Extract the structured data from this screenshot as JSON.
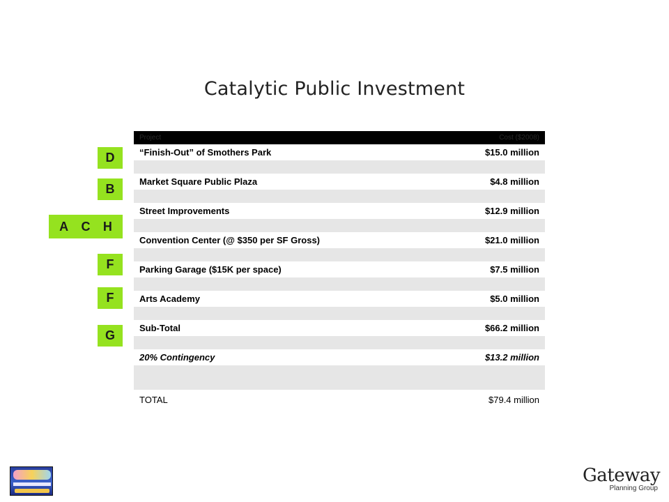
{
  "title": "Catalytic Public Investment",
  "table": {
    "header": {
      "project": "Project",
      "cost": "Cost ($2008)"
    },
    "rows": [
      {
        "project": "“Finish-Out”  of  Smothers Park",
        "cost": "$15.0 million"
      },
      {
        "project": "Market Square Public Plaza",
        "cost": "$4.8 million"
      },
      {
        "project": "Street Improvements",
        "cost": "$12.9 million"
      },
      {
        "project": "Convention Center (@ $350 per SF Gross)",
        "cost": "$21.0 million"
      },
      {
        "project": "Parking Garage ($15K per space)",
        "cost": "$7.5 million"
      },
      {
        "project": "Arts Academy",
        "cost": "$5.0 million"
      },
      {
        "project": "Sub-Total",
        "cost": "$66.2 million"
      },
      {
        "project": "20% Contingency",
        "cost": "$13.2 million"
      },
      {
        "project": "TOTAL",
        "cost": "$79.4 million"
      }
    ]
  },
  "tags": {
    "d": "D",
    "b": "B",
    "ach": [
      "A",
      "C",
      "H"
    ],
    "f1": "F",
    "f2": "F",
    "g": "G"
  },
  "colors": {
    "tag_green": "#95e21f",
    "row_gray": "#e6e6e6",
    "header_black": "#000000"
  },
  "logos": {
    "left": "south-padre-island-logo",
    "right": {
      "word": "Gateway",
      "sub": "Planning Group"
    }
  }
}
